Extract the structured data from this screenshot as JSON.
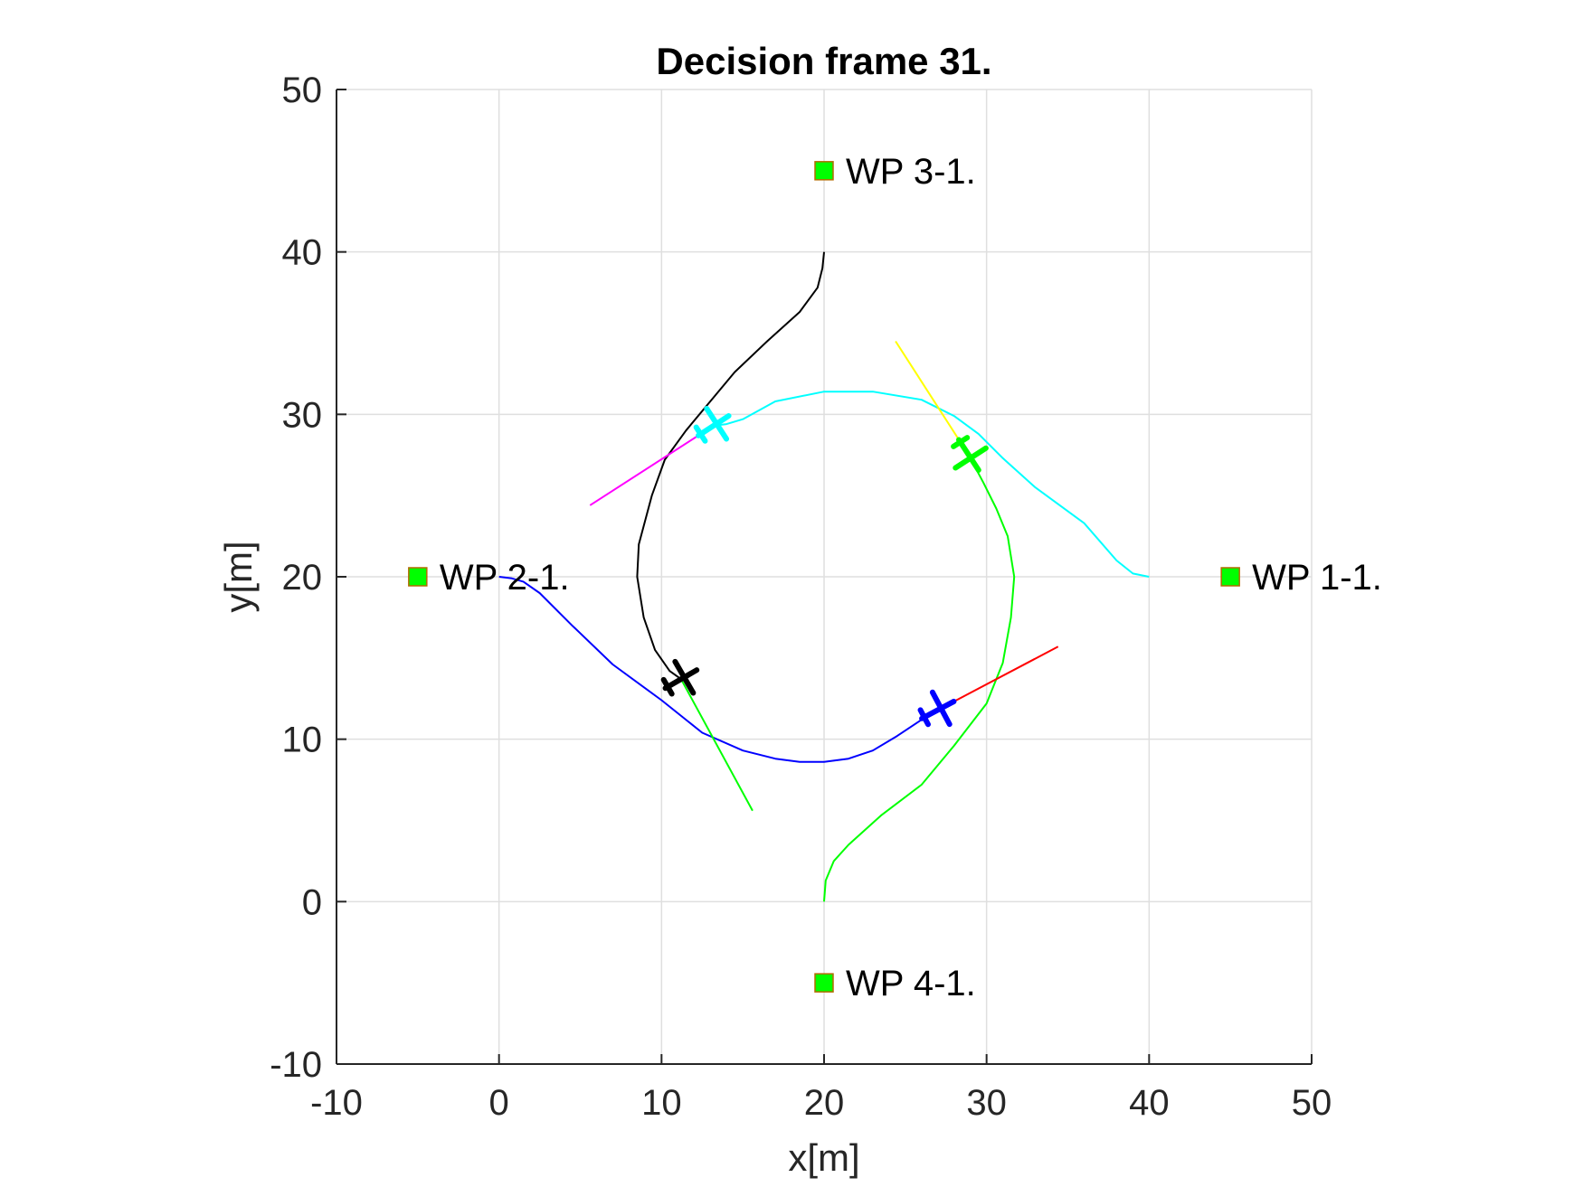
{
  "chart_data": {
    "type": "line",
    "title": "Decision frame 31.",
    "xlabel": "x[m]",
    "ylabel": "y[m]",
    "xlim": [
      -10,
      50
    ],
    "ylim": [
      -10,
      50
    ],
    "grid": true,
    "x_ticks": [
      -10,
      0,
      10,
      20,
      30,
      40,
      50
    ],
    "y_ticks": [
      -10,
      0,
      10,
      20,
      30,
      40,
      50
    ],
    "x_tick_labels": [
      "-10",
      "0",
      "10",
      "20",
      "30",
      "40",
      "50"
    ],
    "y_tick_labels": [
      "-10",
      "0",
      "10",
      "20",
      "30",
      "40",
      "50"
    ],
    "waypoints": [
      {
        "label": "WP 1-1.",
        "x": 45,
        "y": 20
      },
      {
        "label": "WP 2-1.",
        "x": -5,
        "y": 20
      },
      {
        "label": "WP 3-1.",
        "x": 20,
        "y": 45
      },
      {
        "label": "WP 4-1.",
        "x": 20,
        "y": -5
      }
    ],
    "waypoint_fill": "#00ff00",
    "waypoint_edge": "#b36b00",
    "trajectories": [
      {
        "color": "#00ffff",
        "x": [
          40,
          39,
          38,
          36,
          33,
          31,
          29.5,
          28,
          26,
          23,
          20,
          17,
          15,
          14,
          13.2
        ],
        "y": [
          20,
          20.2,
          21,
          23.3,
          25.5,
          27.3,
          28.8,
          29.9,
          30.9,
          31.4,
          31.4,
          30.8,
          29.7,
          29.4,
          29.3
        ]
      },
      {
        "color": "#0000ff",
        "x": [
          0,
          0.8,
          1.5,
          2.5,
          4.5,
          7,
          10,
          12.5,
          15,
          17,
          18.5,
          20,
          21.5,
          23,
          24.5,
          26,
          27
        ],
        "y": [
          20,
          19.9,
          19.7,
          19,
          17,
          14.6,
          12.4,
          10.4,
          9.3,
          8.8,
          8.6,
          8.6,
          8.8,
          9.3,
          10.2,
          11.2,
          11.8
        ]
      },
      {
        "color": "#000000",
        "x": [
          20,
          19.9,
          19.6,
          18.5,
          16.5,
          14.5,
          13,
          11.5,
          10.2,
          9.4,
          8.6,
          8.5,
          8.9,
          9.6,
          10.5,
          11.2
        ],
        "y": [
          40,
          39,
          37.8,
          36.3,
          34.5,
          32.6,
          30.8,
          29,
          27.2,
          25,
          22,
          20,
          17.5,
          15.5,
          14.2,
          13.7
        ]
      },
      {
        "color": "#00ff00",
        "x": [
          20,
          20.1,
          20.6,
          21.5,
          23.5,
          26,
          28,
          30,
          31,
          31.5,
          31.7,
          31.3,
          30.6,
          29.8,
          29
        ],
        "y": [
          0,
          1.3,
          2.5,
          3.5,
          5.3,
          7.2,
          9.6,
          12.2,
          14.7,
          17.5,
          20,
          22.5,
          24.2,
          25.8,
          27.3
        ]
      }
    ],
    "heading_lines": [
      {
        "color": "#ffff00",
        "x": [
          24.4,
          28.9
        ],
        "y": [
          34.5,
          27.5
        ]
      },
      {
        "color": "#ff00ff",
        "x": [
          5.6,
          13.2
        ],
        "y": [
          24.4,
          29.3
        ]
      },
      {
        "color": "#ff0000",
        "x": [
          27,
          34.4
        ],
        "y": [
          11.8,
          15.7
        ]
      },
      {
        "color": "#00ff00",
        "x": [
          11.2,
          15.6
        ],
        "y": [
          13.7,
          5.6
        ]
      }
    ],
    "aircraft": [
      {
        "color": "#00ffff",
        "x": 13.2,
        "y": 29.3,
        "heading_deg": 33
      },
      {
        "color": "#00ff00",
        "x": 28.9,
        "y": 27.5,
        "heading_deg": -57
      },
      {
        "color": "#0000ff",
        "x": 27,
        "y": 11.8,
        "heading_deg": 28
      },
      {
        "color": "#000000",
        "x": 11.2,
        "y": 13.7,
        "heading_deg": 30
      }
    ]
  }
}
